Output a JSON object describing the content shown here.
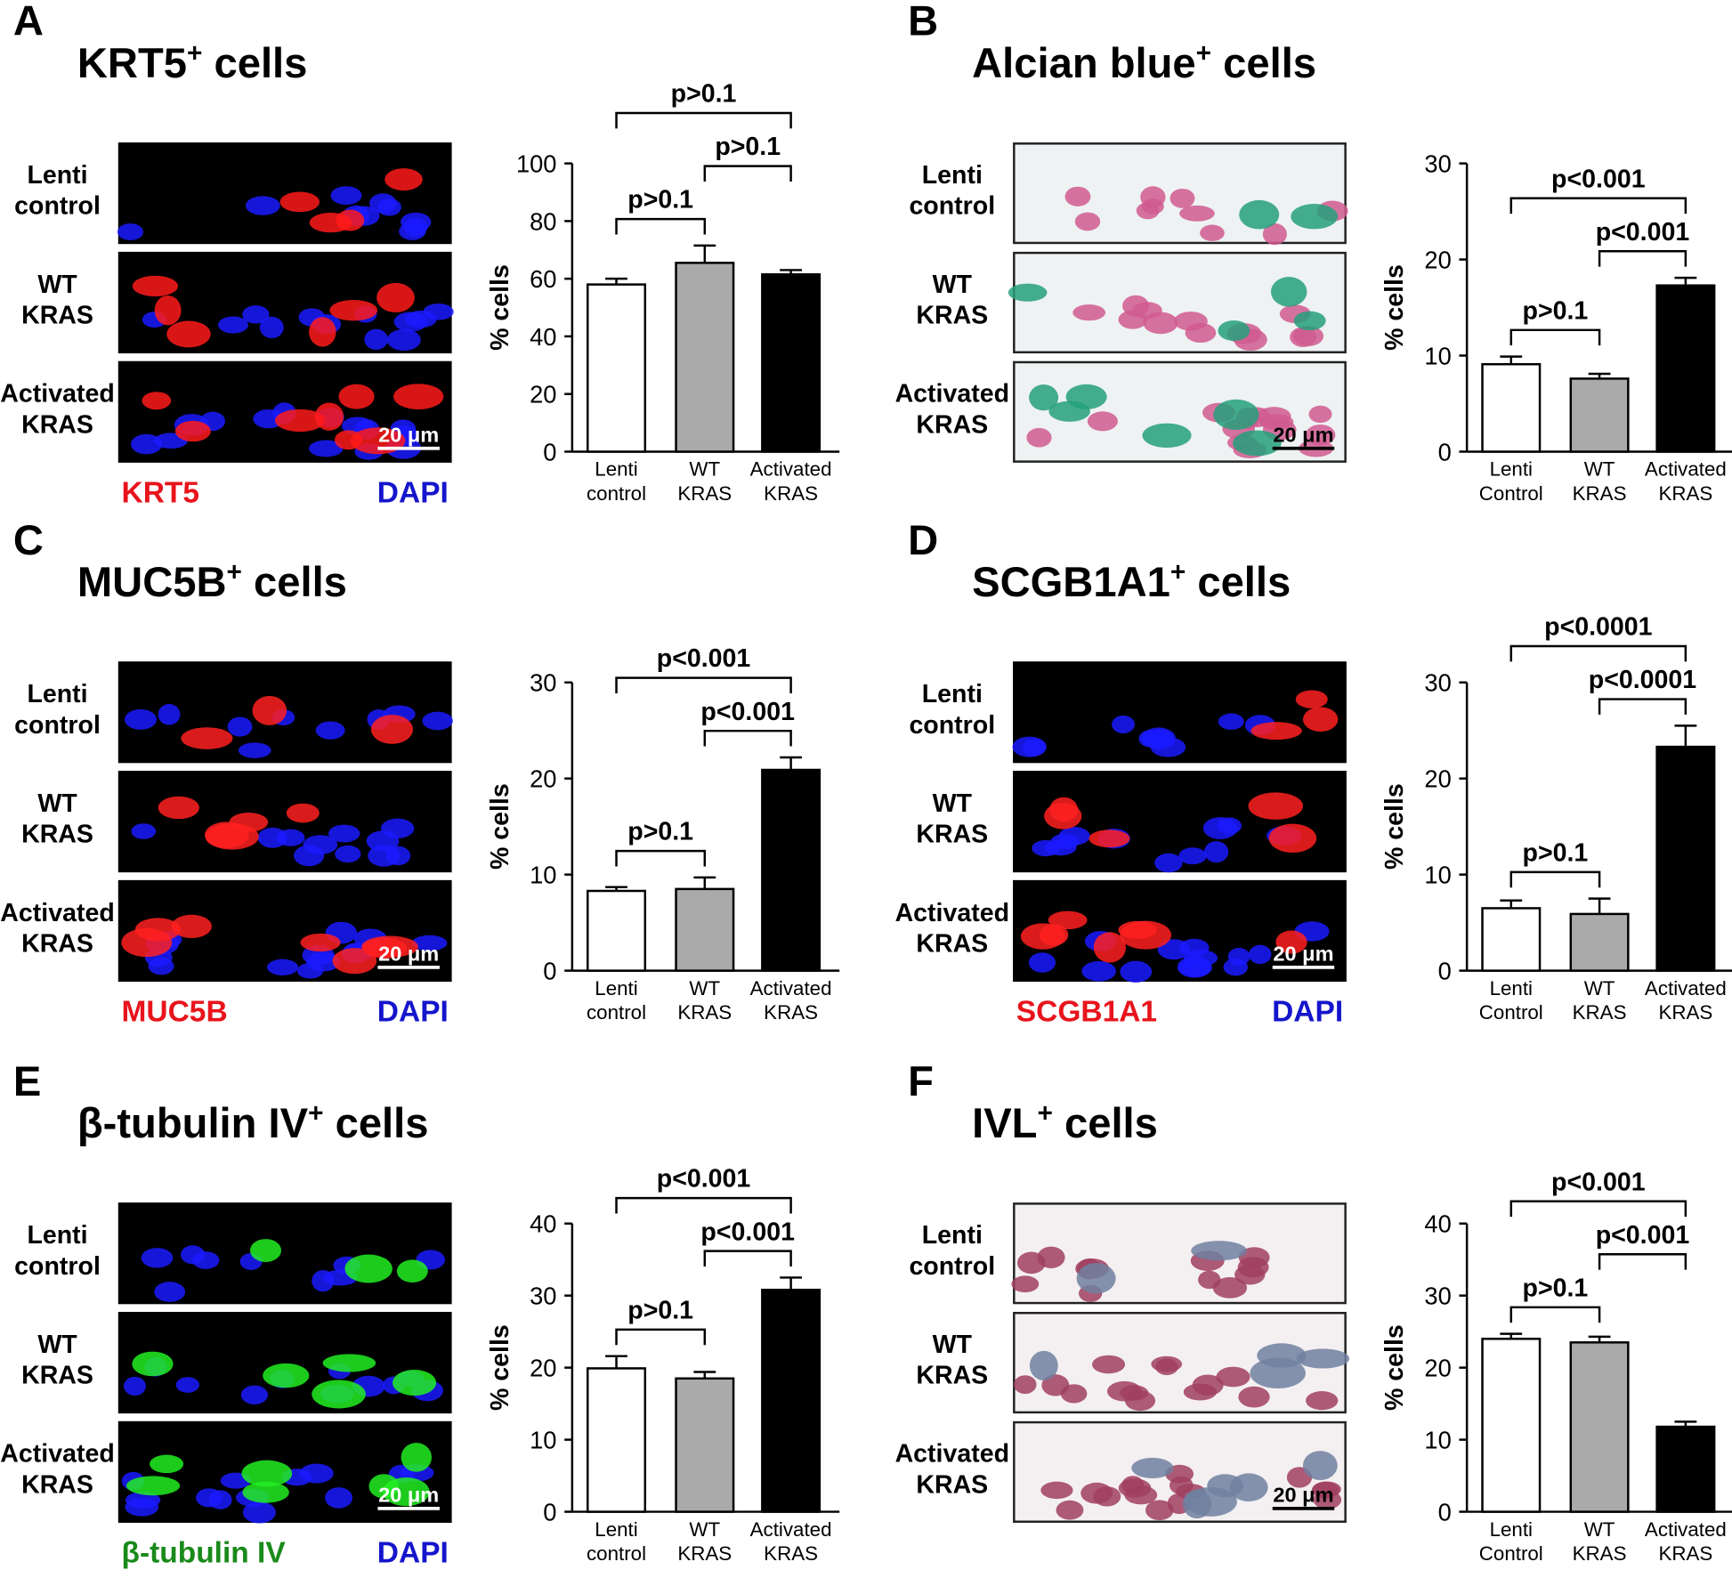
{
  "panels": [
    {
      "letter": "A",
      "title": {
        "main": "KRT5",
        "sup": "+",
        "tail": "cells"
      },
      "rows": [
        [
          "Lenti",
          "control"
        ],
        [
          "WT",
          "KRAS"
        ],
        [
          "Activated",
          "KRAS"
        ]
      ],
      "scale_bar": "20 μm",
      "stains": [
        {
          "text": "KRT5",
          "color": "#e8141c"
        },
        {
          "text": "DAPI",
          "color": "#1515cc"
        }
      ]
    },
    {
      "letter": "B",
      "title": {
        "main": "Alcian blue",
        "sup": "+",
        "tail": "cells"
      },
      "rows": [
        [
          "Lenti",
          "control"
        ],
        [
          "WT",
          "KRAS"
        ],
        [
          "Activated",
          "KRAS"
        ]
      ],
      "scale_bar": "20 μm",
      "stains": []
    },
    {
      "letter": "C",
      "title": {
        "main": "MUC5B",
        "sup": "+",
        "tail": "cells"
      },
      "rows": [
        [
          "Lenti",
          "control"
        ],
        [
          "WT",
          "KRAS"
        ],
        [
          "Activated",
          "KRAS"
        ]
      ],
      "scale_bar": "20 μm",
      "stains": [
        {
          "text": "MUC5B",
          "color": "#e8141c"
        },
        {
          "text": "DAPI",
          "color": "#1515cc"
        }
      ]
    },
    {
      "letter": "D",
      "title": {
        "main": "SCGB1A1",
        "sup": "+",
        "tail": "cells"
      },
      "rows": [
        [
          "Lenti",
          "control"
        ],
        [
          "WT",
          "KRAS"
        ],
        [
          "Activated",
          "KRAS"
        ]
      ],
      "scale_bar": "20 μm",
      "stains": [
        {
          "text": "SCGB1A1",
          "color": "#e8141c"
        },
        {
          "text": "DAPI",
          "color": "#1515cc"
        }
      ]
    },
    {
      "letter": "E",
      "title": {
        "main": "β-tubulin IV",
        "sup": "+",
        "tail": "cells"
      },
      "rows": [
        [
          "Lenti",
          "control"
        ],
        [
          "WT",
          "KRAS"
        ],
        [
          "Activated",
          "KRAS"
        ]
      ],
      "scale_bar": "20 μm",
      "stains": [
        {
          "text": "β-tubulin IV",
          "color": "#1a8a1a"
        },
        {
          "text": "DAPI",
          "color": "#1515cc"
        }
      ]
    },
    {
      "letter": "F",
      "title": {
        "main": "IVL",
        "sup": "+",
        "tail": "cells"
      },
      "rows": [
        [
          "Lenti",
          "control"
        ],
        [
          "WT",
          "KRAS"
        ],
        [
          "Activated",
          "KRAS"
        ]
      ],
      "scale_bar": "20 μm",
      "stains": []
    }
  ],
  "chart_data": [
    {
      "type": "bar",
      "ylabel": "% cells",
      "categories": [
        [
          "Lenti",
          "control"
        ],
        [
          "WT",
          "KRAS"
        ],
        [
          "Activated",
          "KRAS"
        ]
      ],
      "values": [
        58,
        65.5,
        61.5
      ],
      "errors": [
        2,
        6,
        1.5
      ],
      "colors": [
        "#ffffff",
        "#aaaaaa",
        "#000000"
      ],
      "ylim": [
        0,
        100
      ],
      "yticks": [
        0,
        20,
        40,
        60,
        80,
        100
      ],
      "brackets": [
        {
          "between": [
            0,
            1
          ],
          "label": "p>0.1"
        },
        {
          "between": [
            1,
            2
          ],
          "label": "p>0.1"
        },
        {
          "between": [
            0,
            2
          ],
          "label": "p>0.1"
        }
      ]
    },
    {
      "type": "bar",
      "ylabel": "% cells",
      "categories": [
        [
          "Lenti",
          "Control"
        ],
        [
          "WT",
          "KRAS"
        ],
        [
          "Activated",
          "KRAS"
        ]
      ],
      "values": [
        9.1,
        7.6,
        17.3
      ],
      "errors": [
        0.8,
        0.5,
        0.8
      ],
      "colors": [
        "#ffffff",
        "#aaaaaa",
        "#000000"
      ],
      "ylim": [
        0,
        30
      ],
      "yticks": [
        0,
        10,
        20,
        30
      ],
      "brackets": [
        {
          "between": [
            0,
            1
          ],
          "label": "p>0.1"
        },
        {
          "between": [
            1,
            2
          ],
          "label": "p<0.001"
        },
        {
          "between": [
            0,
            2
          ],
          "label": "p<0.001"
        }
      ]
    },
    {
      "type": "bar",
      "ylabel": "% cells",
      "categories": [
        [
          "Lenti",
          "control"
        ],
        [
          "WT",
          "KRAS"
        ],
        [
          "Activated",
          "KRAS"
        ]
      ],
      "values": [
        8.3,
        8.5,
        20.9
      ],
      "errors": [
        0.4,
        1.2,
        1.3
      ],
      "colors": [
        "#ffffff",
        "#aaaaaa",
        "#000000"
      ],
      "ylim": [
        0,
        30
      ],
      "yticks": [
        0,
        10,
        20,
        30
      ],
      "brackets": [
        {
          "between": [
            0,
            1
          ],
          "label": "p>0.1"
        },
        {
          "between": [
            1,
            2
          ],
          "label": "p<0.001"
        },
        {
          "between": [
            0,
            2
          ],
          "label": "p<0.001"
        }
      ]
    },
    {
      "type": "bar",
      "ylabel": "% cells",
      "categories": [
        [
          "Lenti",
          "Control"
        ],
        [
          "WT",
          "KRAS"
        ],
        [
          "Activated",
          "KRAS"
        ]
      ],
      "values": [
        6.5,
        5.9,
        23.3
      ],
      "errors": [
        0.8,
        1.6,
        2.2
      ],
      "colors": [
        "#ffffff",
        "#aaaaaa",
        "#000000"
      ],
      "ylim": [
        0,
        30
      ],
      "yticks": [
        0,
        10,
        20,
        30
      ],
      "brackets": [
        {
          "between": [
            0,
            1
          ],
          "label": "p>0.1"
        },
        {
          "between": [
            1,
            2
          ],
          "label": "p<0.0001"
        },
        {
          "between": [
            0,
            2
          ],
          "label": "p<0.0001"
        }
      ]
    },
    {
      "type": "bar",
      "ylabel": "% cells",
      "categories": [
        [
          "Lenti",
          "control"
        ],
        [
          "WT",
          "KRAS"
        ],
        [
          "Activated",
          "KRAS"
        ]
      ],
      "values": [
        19.9,
        18.5,
        30.8
      ],
      "errors": [
        1.7,
        0.9,
        1.7
      ],
      "colors": [
        "#ffffff",
        "#aaaaaa",
        "#000000"
      ],
      "ylim": [
        0,
        40
      ],
      "yticks": [
        0,
        10,
        20,
        30,
        40
      ],
      "brackets": [
        {
          "between": [
            0,
            1
          ],
          "label": "p>0.1"
        },
        {
          "between": [
            1,
            2
          ],
          "label": "p<0.001"
        },
        {
          "between": [
            0,
            2
          ],
          "label": "p<0.001"
        }
      ]
    },
    {
      "type": "bar",
      "ylabel": "% cells",
      "categories": [
        [
          "Lenti",
          "Control"
        ],
        [
          "WT",
          "KRAS"
        ],
        [
          "Activated",
          "KRAS"
        ]
      ],
      "values": [
        24,
        23.5,
        11.8
      ],
      "errors": [
        0.7,
        0.8,
        0.7
      ],
      "colors": [
        "#ffffff",
        "#aaaaaa",
        "#000000"
      ],
      "ylim": [
        0,
        40
      ],
      "yticks": [
        0,
        10,
        20,
        30,
        40
      ],
      "brackets": [
        {
          "between": [
            0,
            1
          ],
          "label": "p>0.1"
        },
        {
          "between": [
            1,
            2
          ],
          "label": "p<0.001"
        },
        {
          "between": [
            0,
            2
          ],
          "label": "p<0.001"
        }
      ]
    }
  ]
}
